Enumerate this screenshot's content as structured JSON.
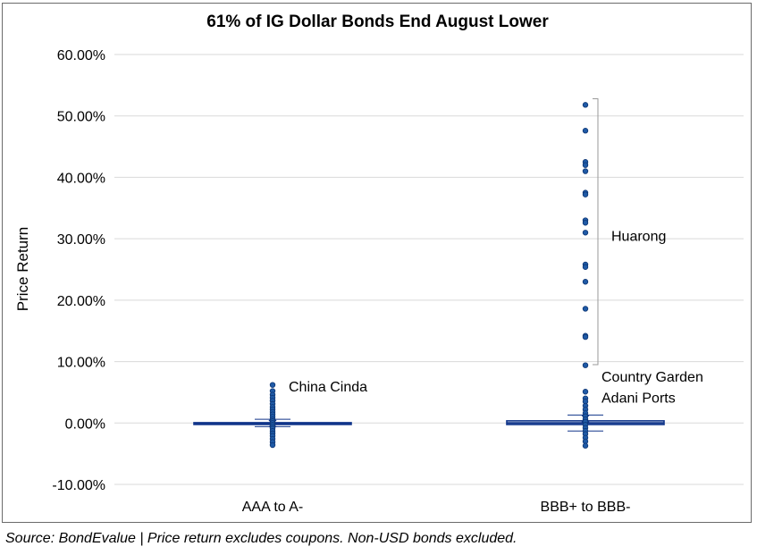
{
  "chart_data": {
    "type": "box-strip",
    "title": "61% of IG Dollar Bonds End August Lower",
    "xlabel": "",
    "ylabel": "Price Return",
    "ylim": [
      -10,
      60
    ],
    "yticks": [
      -10,
      0,
      10,
      20,
      30,
      40,
      50,
      60
    ],
    "ytick_labels": [
      "-10.00%",
      "0.00%",
      "10.00%",
      "20.00%",
      "30.00%",
      "40.00%",
      "50.00%",
      "60.00%"
    ],
    "grid": true,
    "categories": [
      "AAA to A-",
      "BBB+ to BBB-"
    ],
    "series": [
      {
        "name": "AAA to A-",
        "box": {
          "q1": -0.2,
          "median": -0.05,
          "q3": 0.05,
          "mean": -0.1,
          "whisker_low": -0.6,
          "whisker_high": 0.6
        },
        "points": [
          6.2,
          5.2,
          4.6,
          4.1,
          3.6,
          3.1,
          2.6,
          2.2,
          1.8,
          1.4,
          1.0,
          0.6,
          0.3,
          0.0,
          -0.3,
          -0.6,
          -0.9,
          -1.3,
          -1.7,
          -2.1,
          -2.6,
          -3.1,
          -3.6
        ]
      },
      {
        "name": "BBB+ to BBB-",
        "box": {
          "q1": -0.25,
          "median": 0.0,
          "q3": 0.35,
          "mean": 0.7,
          "whisker_low": -1.3,
          "whisker_high": 1.3
        },
        "points": [
          51.8,
          47.6,
          42.5,
          42.0,
          41.0,
          37.5,
          37.2,
          33.0,
          32.6,
          31.0,
          25.8,
          25.4,
          23.0,
          18.6,
          14.2,
          14.0,
          9.4,
          5.1,
          4.0,
          3.5,
          2.8,
          2.2,
          1.6,
          1.1,
          0.6,
          0.2,
          -0.3,
          -0.8,
          -1.3,
          -1.8,
          -2.4,
          -3.0,
          -3.7
        ]
      }
    ],
    "annotations": [
      {
        "text": "China Cinda",
        "category": "AAA to A-",
        "value": 6.0
      },
      {
        "text": "Huarong",
        "category": "BBB+ to BBB-",
        "value": 30.5,
        "bracket": [
          9.5,
          52.8
        ]
      },
      {
        "text": "Country Garden",
        "category": "BBB+ to BBB-",
        "value": 7.6
      },
      {
        "text": "Adani Ports",
        "category": "BBB+ to BBB-",
        "value": 4.2
      }
    ],
    "colors": {
      "points": "#1f5aa6",
      "point_edge": "#0d3573",
      "box": "#10358a",
      "grid": "#d9d9d9",
      "bracket": "#9a9a9a"
    }
  },
  "source_note": "Source: BondEvalue | Price return excludes coupons. Non-USD bonds excluded."
}
